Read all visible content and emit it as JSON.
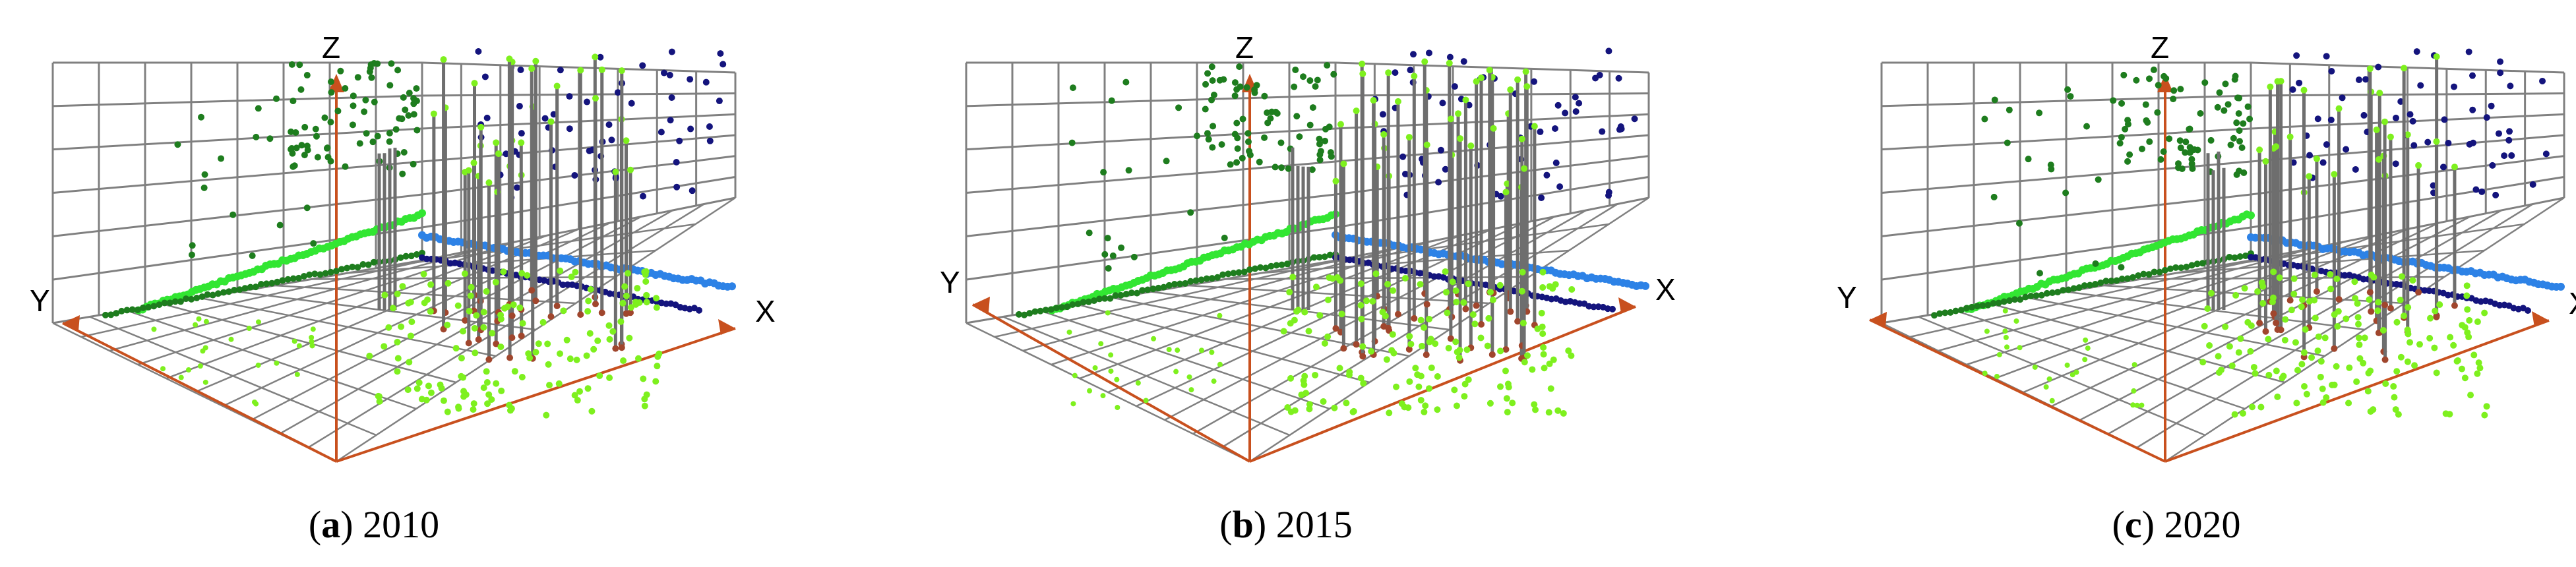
{
  "figure": {
    "panels": [
      {
        "letter": "a",
        "year": "2010"
      },
      {
        "letter": "b",
        "year": "2015"
      },
      {
        "letter": "c",
        "year": "2020"
      }
    ],
    "axis_labels": {
      "x": "X",
      "y": "Y",
      "z": "Z"
    }
  },
  "colors": {
    "grid": "#808080",
    "axes": "#c8501e",
    "stems": "#6e6e6e",
    "dark_green": "#1e7d1e",
    "light_green": "#7ef01e",
    "bright_green": "#32e632",
    "navy": "#14147d",
    "light_blue": "#2d82e6",
    "stem_base": "#a0462d"
  },
  "chart_data": [
    {
      "type": "scatter",
      "panel": "a",
      "year": "2010",
      "axes": [
        "X",
        "Y",
        "Z"
      ],
      "projection": "3d",
      "grid": true
    },
    {
      "type": "scatter",
      "panel": "b",
      "year": "2015",
      "axes": [
        "X",
        "Y",
        "Z"
      ],
      "projection": "3d",
      "grid": true
    },
    {
      "type": "scatter",
      "panel": "c",
      "year": "2020",
      "axes": [
        "X",
        "Y",
        "Z"
      ],
      "projection": "3d",
      "grid": true
    }
  ]
}
